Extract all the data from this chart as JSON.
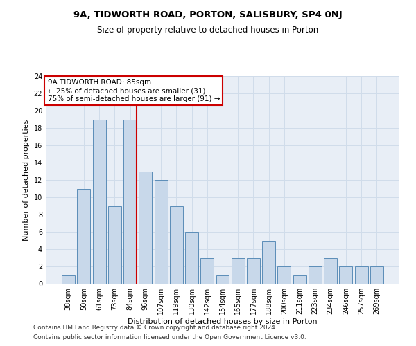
{
  "title1": "9A, TIDWORTH ROAD, PORTON, SALISBURY, SP4 0NJ",
  "title2": "Size of property relative to detached houses in Porton",
  "xlabel": "Distribution of detached houses by size in Porton",
  "ylabel": "Number of detached properties",
  "categories": [
    "38sqm",
    "50sqm",
    "61sqm",
    "73sqm",
    "84sqm",
    "96sqm",
    "107sqm",
    "119sqm",
    "130sqm",
    "142sqm",
    "154sqm",
    "165sqm",
    "177sqm",
    "188sqm",
    "200sqm",
    "211sqm",
    "223sqm",
    "234sqm",
    "246sqm",
    "257sqm",
    "269sqm"
  ],
  "values": [
    1,
    11,
    19,
    9,
    19,
    13,
    12,
    9,
    6,
    3,
    1,
    3,
    3,
    5,
    2,
    1,
    2,
    3,
    2,
    2,
    2
  ],
  "bar_color": "#c8d8ea",
  "bar_edge_color": "#5b8db8",
  "vline_color": "#cc0000",
  "vline_x_index": 4,
  "annotation_line1": "9A TIDWORTH ROAD: 85sqm",
  "annotation_line2": "← 25% of detached houses are smaller (31)",
  "annotation_line3": "75% of semi-detached houses are larger (91) →",
  "annotation_box_color": "#ffffff",
  "annotation_box_edge": "#cc0000",
  "ylim": [
    0,
    24
  ],
  "yticks": [
    0,
    2,
    4,
    6,
    8,
    10,
    12,
    14,
    16,
    18,
    20,
    22,
    24
  ],
  "grid_color": "#d0dcea",
  "background_color": "#e8eef6",
  "footer1": "Contains HM Land Registry data © Crown copyright and database right 2024.",
  "footer2": "Contains public sector information licensed under the Open Government Licence v3.0.",
  "title1_fontsize": 9.5,
  "title2_fontsize": 8.5,
  "xlabel_fontsize": 8,
  "ylabel_fontsize": 8,
  "tick_fontsize": 7,
  "annotation_fontsize": 7.5,
  "footer_fontsize": 6.5
}
